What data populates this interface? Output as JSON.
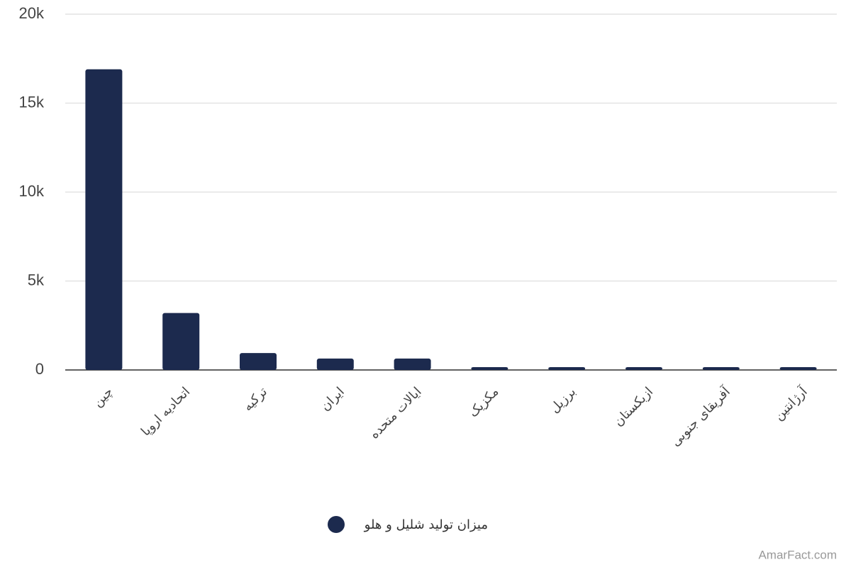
{
  "chart_data": {
    "type": "bar",
    "categories": [
      "چین",
      "اتحادیه اروپا",
      "ترکیه",
      "ایران",
      "ایالات متحده",
      "مکزیک",
      "برزیل",
      "ازبکستان",
      "آفریقای جنوبی",
      "آرژانتین"
    ],
    "series": [
      {
        "name": "میزان تولید شلیل و هلو",
        "color": "#1c2a4e",
        "values": [
          16900,
          3200,
          950,
          640,
          640,
          160,
          160,
          160,
          160,
          160
        ]
      }
    ],
    "ylim": [
      0,
      20000
    ],
    "yticks": [
      0,
      {
        "value": 5000,
        "label": "5k"
      },
      {
        "value": 10000,
        "label": "10k"
      },
      {
        "value": 15000,
        "label": "15k"
      },
      {
        "value": 20000,
        "label": "20k"
      }
    ],
    "grid": true,
    "legend": "bottom",
    "watermark": "AmarFact.com"
  }
}
